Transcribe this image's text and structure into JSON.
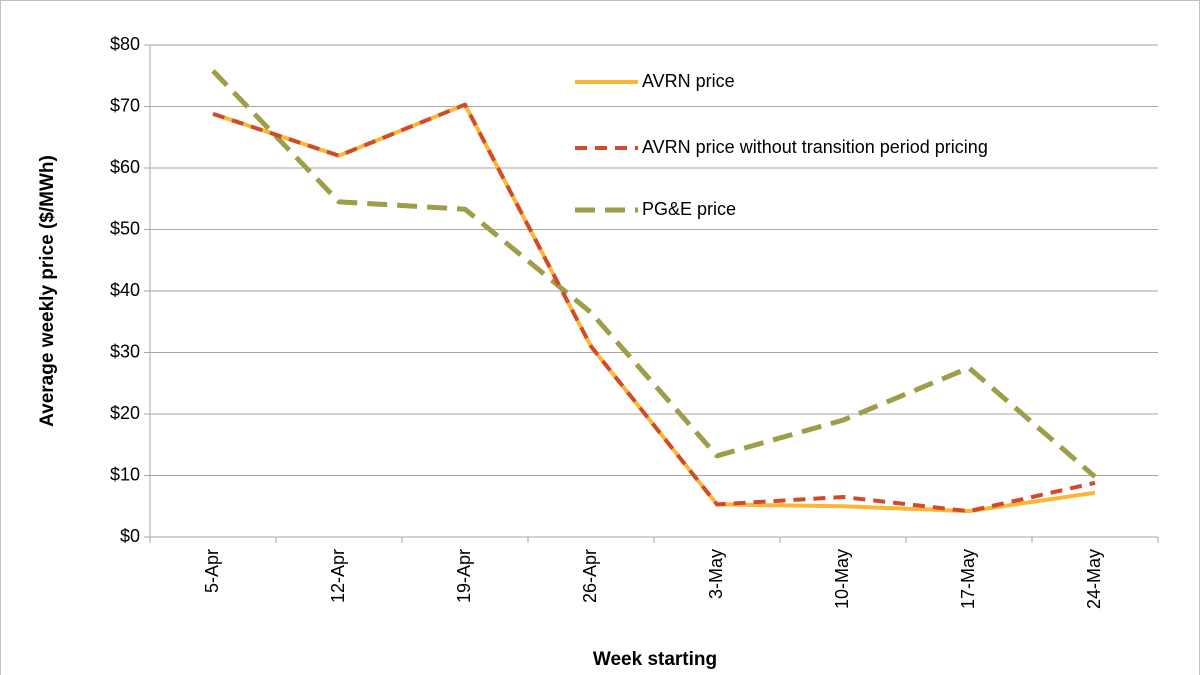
{
  "chart_data": {
    "type": "line",
    "x_label": "Week starting",
    "y_label": "Average weekly price ($/MWh)",
    "categories": [
      "5-Apr",
      "12-Apr",
      "19-Apr",
      "26-Apr",
      "3-May",
      "10-May",
      "17-May",
      "24-May"
    ],
    "series": [
      {
        "name": "AVRN price",
        "color": "#fbb734",
        "dash": false,
        "values": [
          68.8,
          62,
          70.3,
          31,
          5.3,
          5,
          4.2,
          7.2
        ]
      },
      {
        "name": "AVRN price without transition period pricing",
        "color": "#d14b2a",
        "dash": true,
        "values": [
          68.8,
          62,
          70.3,
          31,
          5.3,
          6.5,
          4.2,
          8.8
        ]
      },
      {
        "name": "PG&E price",
        "color": "#9e9d48",
        "dash": true,
        "values": [
          75.8,
          54.5,
          53.3,
          36.5,
          13.2,
          19,
          27.5,
          9.8
        ]
      }
    ],
    "ylim": [
      0,
      80
    ],
    "yticks": [
      {
        "value": 0,
        "label": "$0"
      },
      {
        "value": 10,
        "label": "$10"
      },
      {
        "value": 20,
        "label": "$20"
      },
      {
        "value": 30,
        "label": "$30"
      },
      {
        "value": 40,
        "label": "$40"
      },
      {
        "value": 50,
        "label": "$50"
      },
      {
        "value": 60,
        "label": "$60"
      },
      {
        "value": 70,
        "label": "$70"
      },
      {
        "value": 80,
        "label": "$80"
      }
    ],
    "grid": true,
    "legend": "top"
  }
}
